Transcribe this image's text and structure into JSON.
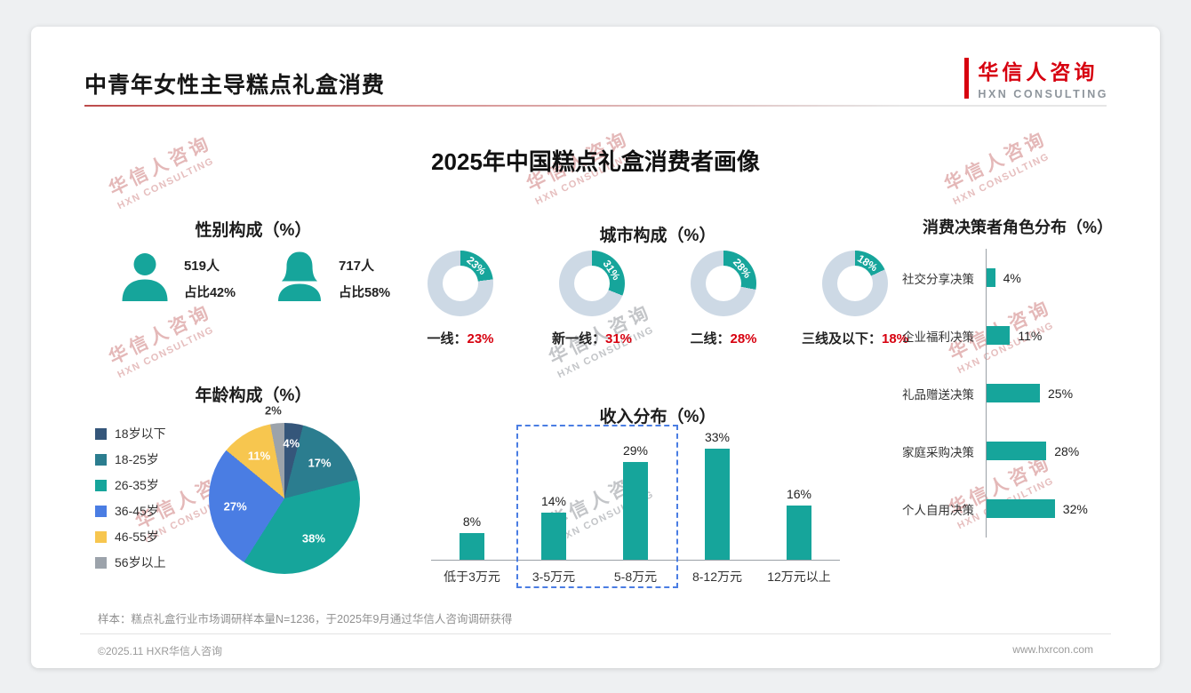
{
  "header": {
    "title": "中青年女性主导糕点礼盒消费"
  },
  "logo": {
    "cn": "华信人咨询",
    "en": "HXN CONSULTING"
  },
  "main_title": "2025年中国糕点礼盒消费者画像",
  "watermark": {
    "cn": "华信人咨询",
    "en": "HXN CONSULTING"
  },
  "footnote": "样本：糕点礼盒行业市场调研样本量N=1236，于2025年9月通过华信人咨询调研获得",
  "footer": {
    "copyright": "©2025.11 HXR华信人咨询",
    "website": "www.hxrcon.com"
  },
  "colors": {
    "teal": "#16A59B",
    "red": "#D7000F",
    "donut_rest": "#CDD9E5",
    "highlight_blue": "#4A7DE3"
  },
  "chart_data": [
    {
      "type": "pictogram",
      "title": "性别构成（%）",
      "items": [
        {
          "gender": "male",
          "count": "519人",
          "share": "占比42%"
        },
        {
          "gender": "female",
          "count": "717人",
          "share": "占比58%"
        }
      ]
    },
    {
      "type": "donut",
      "title": "城市构成（%）",
      "items": [
        {
          "label": "一线",
          "value": 23
        },
        {
          "label": "新一线",
          "value": 31
        },
        {
          "label": "二线",
          "value": 28
        },
        {
          "label": "三线及以下",
          "value": 18
        }
      ]
    },
    {
      "type": "pie",
      "title": "年龄构成（%）",
      "slices": [
        {
          "label": "18岁以下",
          "value": 4,
          "color": "#35567A"
        },
        {
          "label": "18-25岁",
          "value": 17,
          "color": "#2B7D8F"
        },
        {
          "label": "26-35岁",
          "value": 38,
          "color": "#16A59B"
        },
        {
          "label": "36-45岁",
          "value": 27,
          "color": "#4A7DE3"
        },
        {
          "label": "46-55岁",
          "value": 11,
          "color": "#F7C64F"
        },
        {
          "label": "56岁以上",
          "value": 2,
          "color": "#9CA3AB"
        }
      ]
    },
    {
      "type": "bar",
      "title": "收入分布（%）",
      "categories": [
        "低于3万元",
        "3-5万元",
        "5-8万元",
        "8-12万元",
        "12万元以上"
      ],
      "values": [
        8,
        14,
        29,
        33,
        16
      ],
      "highlight": {
        "from": "3-5万元",
        "to": "5-8万元"
      }
    },
    {
      "type": "hbar",
      "title": "消费决策者角色分布（%）",
      "categories": [
        "社交分享决策",
        "企业福利决策",
        "礼品赠送决策",
        "家庭采购决策",
        "个人自用决策"
      ],
      "values": [
        4,
        11,
        25,
        28,
        32
      ]
    }
  ]
}
